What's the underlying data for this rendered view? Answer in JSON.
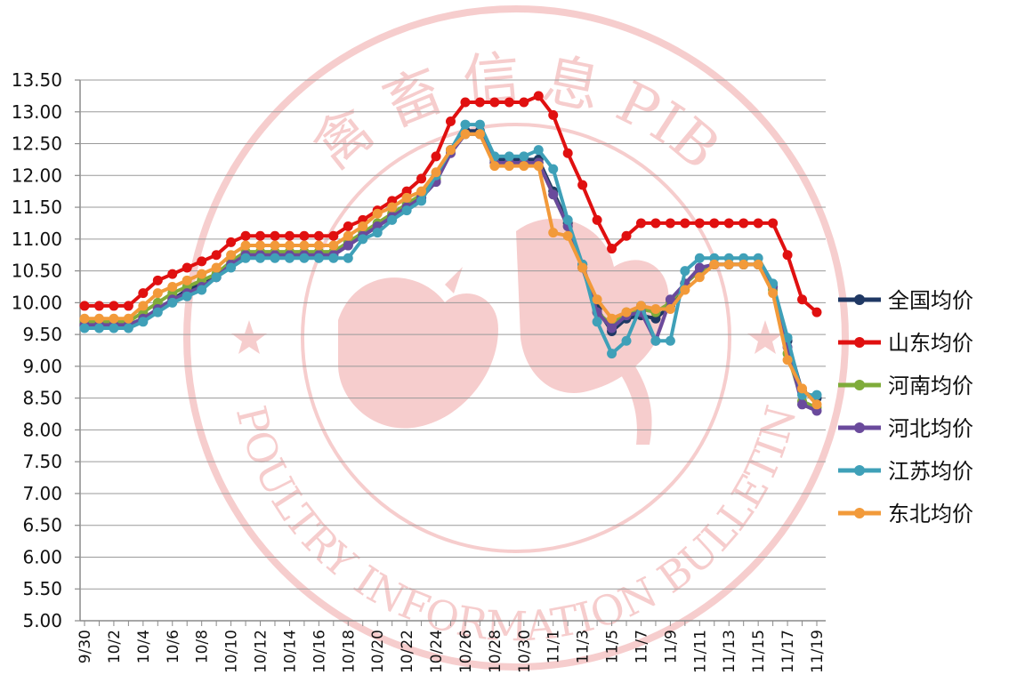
{
  "chart_data": {
    "type": "line",
    "title": "",
    "xlabel": "",
    "ylabel": "",
    "ylim": [
      5.0,
      13.5
    ],
    "y_ticks": [
      "5.00",
      "5.50",
      "6.00",
      "6.50",
      "7.00",
      "7.50",
      "8.00",
      "8.50",
      "9.00",
      "9.50",
      "10.00",
      "10.50",
      "11.00",
      "11.50",
      "12.00",
      "12.50",
      "13.00",
      "13.50"
    ],
    "x_tick_labels": [
      "9/30",
      "10/2",
      "10/4",
      "10/6",
      "10/8",
      "10/10",
      "10/12",
      "10/14",
      "10/16",
      "10/18",
      "10/20",
      "10/22",
      "10/24",
      "10/26",
      "10/28",
      "10/30",
      "11/1",
      "11/3",
      "11/5",
      "11/7",
      "11/9",
      "11/11",
      "11/13",
      "11/15",
      "11/17",
      "11/19"
    ],
    "x": [
      "9/30",
      "10/1",
      "10/2",
      "10/3",
      "10/4",
      "10/5",
      "10/6",
      "10/7",
      "10/8",
      "10/9",
      "10/10",
      "10/11",
      "10/12",
      "10/13",
      "10/14",
      "10/15",
      "10/16",
      "10/17",
      "10/18",
      "10/19",
      "10/20",
      "10/21",
      "10/22",
      "10/23",
      "10/24",
      "10/25",
      "10/26",
      "10/27",
      "10/28",
      "10/29",
      "10/30",
      "10/31",
      "11/1",
      "11/2",
      "11/3",
      "11/4",
      "11/5",
      "11/6",
      "11/7",
      "11/8",
      "11/9",
      "11/10",
      "11/11",
      "11/12",
      "11/13",
      "11/14",
      "11/15",
      "11/16",
      "11/17",
      "11/18",
      "11/19"
    ],
    "grid": true,
    "legend_position": "right",
    "series": [
      {
        "name": "全国均价",
        "color": "#1f3864",
        "values": [
          9.65,
          9.65,
          9.65,
          9.65,
          9.75,
          9.9,
          10.05,
          10.2,
          10.3,
          10.4,
          10.6,
          10.75,
          10.75,
          10.75,
          10.75,
          10.75,
          10.75,
          10.75,
          10.9,
          11.05,
          11.2,
          11.35,
          11.5,
          11.65,
          11.9,
          12.4,
          12.7,
          12.7,
          12.25,
          12.25,
          12.25,
          12.25,
          11.75,
          11.25,
          10.6,
          9.9,
          9.55,
          9.75,
          9.8,
          9.75,
          9.95,
          10.3,
          10.5,
          10.6,
          10.6,
          10.6,
          10.6,
          10.25,
          9.4,
          8.6,
          8.5
        ]
      },
      {
        "name": "山东均价",
        "color": "#e01010",
        "values": [
          9.95,
          9.95,
          9.95,
          9.95,
          10.15,
          10.35,
          10.45,
          10.55,
          10.65,
          10.75,
          10.95,
          11.05,
          11.05,
          11.05,
          11.05,
          11.05,
          11.05,
          11.05,
          11.2,
          11.3,
          11.45,
          11.6,
          11.75,
          11.95,
          12.3,
          12.85,
          13.15,
          13.15,
          13.15,
          13.15,
          13.15,
          13.25,
          12.95,
          12.35,
          11.85,
          11.3,
          10.85,
          11.05,
          11.25,
          11.25,
          11.25,
          11.25,
          11.25,
          11.25,
          11.25,
          11.25,
          11.25,
          11.25,
          10.75,
          10.05,
          9.85
        ]
      },
      {
        "name": "河南均价",
        "color": "#7fac3a",
        "values": [
          9.7,
          9.7,
          9.7,
          9.7,
          9.85,
          10.0,
          10.15,
          10.25,
          10.35,
          10.45,
          10.65,
          10.8,
          10.8,
          10.8,
          10.8,
          10.8,
          10.8,
          10.8,
          10.95,
          11.1,
          11.25,
          11.4,
          11.55,
          11.7,
          11.95,
          12.4,
          12.65,
          12.65,
          12.2,
          12.2,
          12.2,
          12.2,
          11.7,
          11.2,
          10.55,
          9.85,
          9.65,
          9.85,
          9.9,
          9.85,
          10.0,
          10.3,
          10.5,
          10.6,
          10.6,
          10.6,
          10.6,
          10.2,
          9.2,
          8.45,
          8.35
        ]
      },
      {
        "name": "河北均价",
        "color": "#6a4a9c",
        "values": [
          9.65,
          9.65,
          9.65,
          9.65,
          9.75,
          9.9,
          10.05,
          10.15,
          10.25,
          10.4,
          10.6,
          10.75,
          10.75,
          10.75,
          10.75,
          10.75,
          10.75,
          10.75,
          10.9,
          11.05,
          11.2,
          11.35,
          11.5,
          11.65,
          11.9,
          12.35,
          12.65,
          12.65,
          12.2,
          12.2,
          12.2,
          12.2,
          11.7,
          11.2,
          10.55,
          9.85,
          9.6,
          9.8,
          9.85,
          9.4,
          10.05,
          10.3,
          10.55,
          10.6,
          10.6,
          10.6,
          10.6,
          10.25,
          9.3,
          8.4,
          8.3
        ]
      },
      {
        "name": "江苏均价",
        "color": "#3fa0b8",
        "values": [
          9.6,
          9.6,
          9.6,
          9.6,
          9.7,
          9.85,
          10.0,
          10.1,
          10.2,
          10.4,
          10.55,
          10.7,
          10.7,
          10.7,
          10.7,
          10.7,
          10.7,
          10.7,
          10.7,
          11.0,
          11.1,
          11.3,
          11.45,
          11.6,
          12.0,
          12.4,
          12.8,
          12.8,
          12.3,
          12.3,
          12.3,
          12.4,
          12.1,
          11.3,
          10.6,
          9.7,
          9.2,
          9.4,
          9.95,
          9.4,
          9.4,
          10.5,
          10.7,
          10.7,
          10.7,
          10.7,
          10.7,
          10.3,
          9.45,
          8.55,
          8.55
        ]
      },
      {
        "name": "东北均价",
        "color": "#f29a3a",
        "values": [
          9.75,
          9.75,
          9.75,
          9.75,
          9.95,
          10.15,
          10.25,
          10.35,
          10.45,
          10.55,
          10.75,
          10.9,
          10.9,
          10.9,
          10.9,
          10.9,
          10.9,
          10.9,
          11.05,
          11.2,
          11.4,
          11.5,
          11.65,
          11.75,
          12.05,
          12.4,
          12.65,
          12.65,
          12.15,
          12.15,
          12.15,
          12.15,
          11.1,
          11.05,
          10.55,
          10.05,
          9.75,
          9.85,
          9.95,
          9.9,
          9.9,
          10.2,
          10.4,
          10.6,
          10.6,
          10.6,
          10.6,
          10.15,
          9.1,
          8.65,
          8.4
        ]
      }
    ]
  },
  "watermark": {
    "ring_text_top": "禽 畜 信 息 PIB",
    "ring_text_bottom": "POULTRY INFORMATION BULLETIN",
    "color": "#e88080"
  }
}
